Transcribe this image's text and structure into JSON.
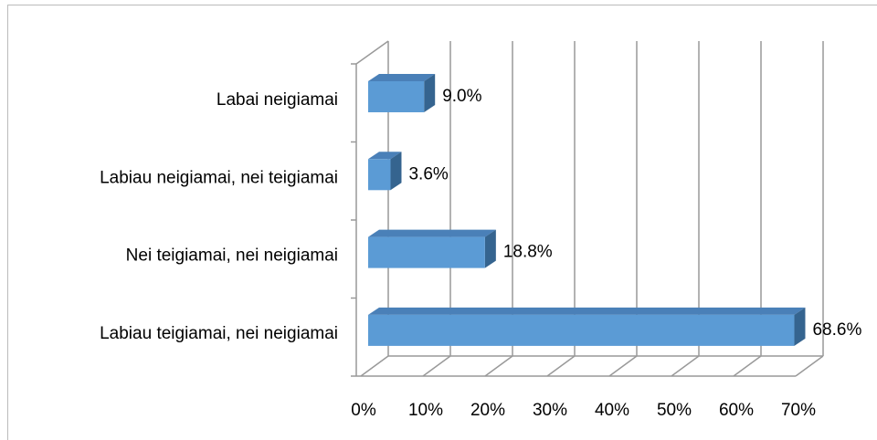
{
  "chart_data": {
    "type": "bar3d_horizontal",
    "categories": [
      "Labai neigiamai",
      "Labiau neigiamai, nei teigiamai",
      "Nei teigiamai, nei neigiamai",
      "Labiau teigiamai, nei neigiamai"
    ],
    "values": [
      9.0,
      3.6,
      18.8,
      68.6
    ],
    "value_labels": [
      "9.0%",
      "3.6%",
      "18.8%",
      "68.6%"
    ],
    "color": "#5b9bd5",
    "xlim": [
      0,
      70
    ],
    "xticks": [
      {
        "value": 0,
        "label": "0%"
      },
      {
        "value": 10,
        "label": "10%"
      },
      {
        "value": 20,
        "label": "20%"
      },
      {
        "value": 30,
        "label": "30%"
      },
      {
        "value": 40,
        "label": "40%"
      },
      {
        "value": 50,
        "label": "50%"
      },
      {
        "value": 60,
        "label": "60%"
      },
      {
        "value": 70,
        "label": "70%"
      }
    ],
    "grid": true
  }
}
